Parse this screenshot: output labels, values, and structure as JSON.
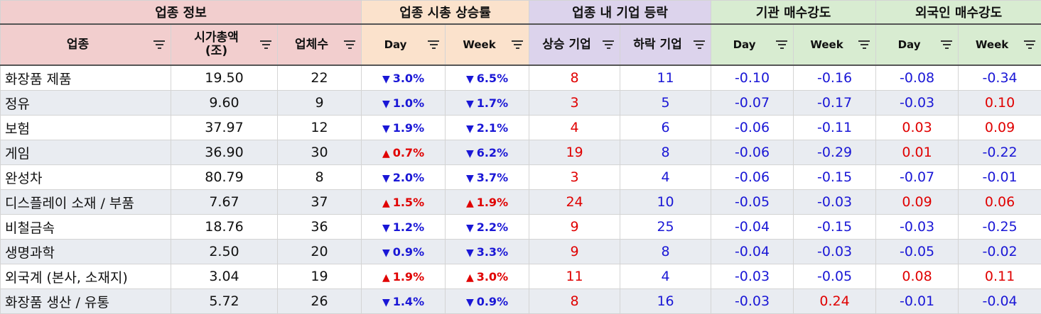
{
  "groups": {
    "info": "업종 정보",
    "mcap": "업종 시총 상승률",
    "breadth": "업종 내 기업 등락",
    "inst": "기관 매수강도",
    "foreign": "외국인 매수강도"
  },
  "columns": {
    "sector": "업종",
    "mcap_line1": "시가총액",
    "mcap_line2": "(조)",
    "count": "업체수",
    "mcap_day": "Day",
    "mcap_week": "Week",
    "rising": "상승 기업",
    "falling": "하락 기업",
    "inst_day": "Day",
    "inst_week": "Week",
    "for_day": "Day",
    "for_week": "Week"
  },
  "colors": {
    "up": "#e00000",
    "down": "#1a17d6",
    "header_info": "#f2cece",
    "header_mcap": "#fbe2cc",
    "header_breadth": "#dcd3ec",
    "header_flow": "#d8ecd1",
    "row_alt": "#e9ecf1"
  },
  "icons": {
    "filter": "filter-icon",
    "up": "triangle-up-icon",
    "down": "triangle-down-icon"
  },
  "rows": [
    {
      "sector": "화장품 제품",
      "mcap": "19.50",
      "count": "22",
      "day": "3.0%",
      "day_dir": "down",
      "week": "6.5%",
      "week_dir": "down",
      "rise": "8",
      "fall": "11",
      "inst_day": "-0.10",
      "inst_week": "-0.16",
      "for_day": "-0.08",
      "for_week": "-0.34"
    },
    {
      "sector": "정유",
      "mcap": "9.60",
      "count": "9",
      "day": "1.0%",
      "day_dir": "down",
      "week": "1.7%",
      "week_dir": "down",
      "rise": "3",
      "fall": "5",
      "inst_day": "-0.07",
      "inst_week": "-0.17",
      "for_day": "-0.03",
      "for_week": "0.10"
    },
    {
      "sector": "보험",
      "mcap": "37.97",
      "count": "12",
      "day": "1.9%",
      "day_dir": "down",
      "week": "2.1%",
      "week_dir": "down",
      "rise": "4",
      "fall": "6",
      "inst_day": "-0.06",
      "inst_week": "-0.11",
      "for_day": "0.03",
      "for_week": "0.09"
    },
    {
      "sector": "게임",
      "mcap": "36.90",
      "count": "30",
      "day": "0.7%",
      "day_dir": "up",
      "week": "6.2%",
      "week_dir": "down",
      "rise": "19",
      "fall": "8",
      "inst_day": "-0.06",
      "inst_week": "-0.29",
      "for_day": "0.01",
      "for_week": "-0.22"
    },
    {
      "sector": "완성차",
      "mcap": "80.79",
      "count": "8",
      "day": "2.0%",
      "day_dir": "down",
      "week": "3.7%",
      "week_dir": "down",
      "rise": "3",
      "fall": "4",
      "inst_day": "-0.06",
      "inst_week": "-0.15",
      "for_day": "-0.07",
      "for_week": "-0.01"
    },
    {
      "sector": "디스플레이 소재 / 부품",
      "mcap": "7.67",
      "count": "37",
      "day": "1.5%",
      "day_dir": "up",
      "week": "1.9%",
      "week_dir": "up",
      "rise": "24",
      "fall": "10",
      "inst_day": "-0.05",
      "inst_week": "-0.03",
      "for_day": "0.09",
      "for_week": "0.06"
    },
    {
      "sector": "비철금속",
      "mcap": "18.76",
      "count": "36",
      "day": "1.2%",
      "day_dir": "down",
      "week": "2.2%",
      "week_dir": "down",
      "rise": "9",
      "fall": "25",
      "inst_day": "-0.04",
      "inst_week": "-0.15",
      "for_day": "-0.03",
      "for_week": "-0.25"
    },
    {
      "sector": "생명과학",
      "mcap": "2.50",
      "count": "20",
      "day": "0.9%",
      "day_dir": "down",
      "week": "3.3%",
      "week_dir": "down",
      "rise": "9",
      "fall": "8",
      "inst_day": "-0.04",
      "inst_week": "-0.03",
      "for_day": "-0.05",
      "for_week": "-0.02"
    },
    {
      "sector": "외국계 (본사, 소재지)",
      "mcap": "3.04",
      "count": "19",
      "day": "1.9%",
      "day_dir": "up",
      "week": "3.0%",
      "week_dir": "up",
      "rise": "11",
      "fall": "4",
      "inst_day": "-0.03",
      "inst_week": "-0.05",
      "for_day": "0.08",
      "for_week": "0.11"
    },
    {
      "sector": "화장품 생산 / 유통",
      "mcap": "5.72",
      "count": "26",
      "day": "1.4%",
      "day_dir": "down",
      "week": "0.9%",
      "week_dir": "down",
      "rise": "8",
      "fall": "16",
      "inst_day": "-0.03",
      "inst_week": "0.24",
      "for_day": "-0.01",
      "for_week": "-0.04"
    }
  ]
}
